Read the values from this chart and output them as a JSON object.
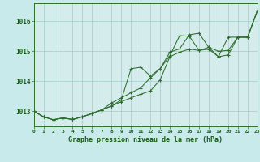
{
  "title": "Graphe pression niveau de la mer (hPa)",
  "bg_color": "#c8eaea",
  "plot_bg_color": "#d5ecec",
  "grid_color": "#a0cccc",
  "line_color": "#2d6e2d",
  "tick_color": "#1a5c1a",
  "xmin": 0,
  "xmax": 23,
  "ymin": 1012.5,
  "ymax": 1016.6,
  "yticks": [
    1013,
    1014,
    1015,
    1016
  ],
  "xticks": [
    0,
    1,
    2,
    3,
    4,
    5,
    6,
    7,
    8,
    9,
    10,
    11,
    12,
    13,
    14,
    15,
    16,
    17,
    18,
    19,
    20,
    21,
    22,
    23
  ],
  "series": [
    [
      1013.0,
      1012.82,
      1012.72,
      1012.78,
      1012.73,
      1012.82,
      1012.93,
      1013.05,
      1013.18,
      1013.32,
      1013.45,
      1013.57,
      1013.68,
      1014.05,
      1014.82,
      1014.97,
      1015.07,
      1015.03,
      1015.13,
      1015.0,
      1015.03,
      1015.47,
      1015.47,
      1016.35
    ],
    [
      1013.0,
      1012.82,
      1012.72,
      1012.78,
      1012.73,
      1012.82,
      1012.93,
      1013.05,
      1013.18,
      1013.38,
      1014.42,
      1014.47,
      1014.18,
      1014.42,
      1014.85,
      1015.52,
      1015.5,
      1015.03,
      1015.07,
      1014.82,
      1014.88,
      1015.47,
      1015.47,
      1016.35
    ],
    [
      1013.0,
      1012.82,
      1012.72,
      1012.78,
      1012.73,
      1012.82,
      1012.93,
      1013.05,
      1013.28,
      1013.45,
      1013.62,
      1013.78,
      1014.12,
      1014.42,
      1014.97,
      1015.08,
      1015.55,
      1015.6,
      1015.13,
      1014.82,
      1015.47,
      1015.47,
      1015.47,
      1016.35
    ]
  ]
}
